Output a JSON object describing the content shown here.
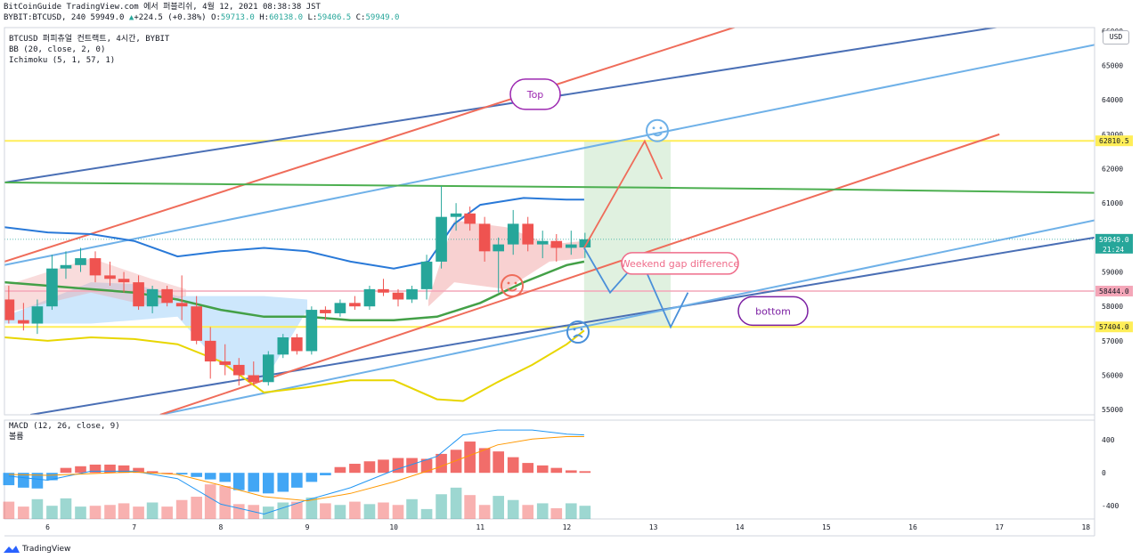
{
  "header": {
    "line1": "BitCoinGuide TradingView.com 에서 퍼블리쉬, 4월 12, 2021 08:38:38 JST",
    "symbol": "BYBIT:BTCUSD, 240",
    "last": "59949.0",
    "change": "+224.5 (+0.38%)",
    "o_label": "O:",
    "o_value": "59713.0",
    "h_label": "H:",
    "h_value": "60138.0",
    "l_label": "L:",
    "l_value": "59406.5",
    "c_label": "C:",
    "c_value": "59949.0"
  },
  "legend": {
    "title": "BTCUSD 퍼피츄얼 컨트랙트, 4시간, BYBIT",
    "bb": "BB (20, close, 2, 0)",
    "ichimoku": "Ichimoku (5, 1, 57, 1)",
    "macd": "MACD (12, 26, close, 9)",
    "volume": "볼륨"
  },
  "currency_button": "USD",
  "brand": "TradingView",
  "annotations": {
    "top": "Top",
    "bottom": "bottom",
    "gap": "Weekend gap difference"
  },
  "colors": {
    "up": "#26a69a",
    "down": "#ef5350",
    "bb_band": "#2979d8",
    "bb_basis": "#e8d600",
    "ichimoku_lead": "#4caf50",
    "level_yellow": "#ffee58",
    "level_pink": "#f4a6b8",
    "channel_dark": "#4a6fb5",
    "channel_light": "#6fb1e8",
    "channel_red": "#ef6c5a"
  },
  "chart_data": {
    "type": "candlestick",
    "price_axis": {
      "ticks": [
        55000,
        56000,
        57000,
        58000,
        59000,
        60000,
        61000,
        62000,
        63000,
        64000,
        65000,
        66000
      ],
      "ylim": [
        54850,
        66100
      ]
    },
    "x_axis": {
      "ticks": [
        "6",
        "7",
        "8",
        "9",
        "10",
        "11",
        "12",
        "13",
        "14",
        "15",
        "16",
        "17",
        "18"
      ]
    },
    "price_labels": [
      {
        "label": "62810.5",
        "value": 62810.5,
        "color": "#ffee58",
        "text_color": "#131722"
      },
      {
        "label": "59949.0",
        "sub": "21:24",
        "value": 59949.0,
        "color": "#26a69a",
        "text_color": "#ffffff"
      },
      {
        "label": "58444.0",
        "value": 58444.0,
        "color": "#f4a6b8",
        "text_color": "#131722"
      },
      {
        "label": "57404.0",
        "value": 57404.0,
        "color": "#ffee58",
        "text_color": "#131722"
      }
    ],
    "candles": [
      {
        "x": 5.55,
        "o": 58200,
        "h": 58600,
        "l": 57500,
        "c": 57600
      },
      {
        "x": 5.72,
        "o": 57600,
        "h": 58100,
        "l": 57300,
        "c": 57500
      },
      {
        "x": 5.88,
        "o": 57500,
        "h": 58200,
        "l": 57200,
        "c": 58000
      },
      {
        "x": 6.05,
        "o": 58000,
        "h": 59500,
        "l": 57900,
        "c": 59100
      },
      {
        "x": 6.21,
        "o": 59100,
        "h": 59600,
        "l": 58800,
        "c": 59200
      },
      {
        "x": 6.38,
        "o": 59200,
        "h": 59700,
        "l": 59000,
        "c": 59400
      },
      {
        "x": 6.55,
        "o": 59400,
        "h": 59600,
        "l": 58700,
        "c": 58900
      },
      {
        "x": 6.72,
        "o": 58900,
        "h": 59300,
        "l": 58600,
        "c": 58800
      },
      {
        "x": 6.88,
        "o": 58800,
        "h": 59000,
        "l": 58400,
        "c": 58700
      },
      {
        "x": 7.05,
        "o": 58700,
        "h": 58900,
        "l": 57900,
        "c": 58000
      },
      {
        "x": 7.21,
        "o": 58000,
        "h": 58600,
        "l": 57800,
        "c": 58500
      },
      {
        "x": 7.38,
        "o": 58500,
        "h": 58600,
        "l": 58000,
        "c": 58100
      },
      {
        "x": 7.55,
        "o": 58100,
        "h": 58900,
        "l": 57600,
        "c": 58000
      },
      {
        "x": 7.72,
        "o": 58000,
        "h": 58300,
        "l": 56900,
        "c": 57000
      },
      {
        "x": 7.88,
        "o": 57000,
        "h": 57400,
        "l": 55900,
        "c": 56400
      },
      {
        "x": 8.05,
        "o": 56400,
        "h": 56900,
        "l": 56000,
        "c": 56300
      },
      {
        "x": 8.21,
        "o": 56300,
        "h": 56500,
        "l": 55700,
        "c": 56000
      },
      {
        "x": 8.38,
        "o": 56000,
        "h": 56400,
        "l": 55700,
        "c": 55800
      },
      {
        "x": 8.55,
        "o": 55800,
        "h": 56700,
        "l": 55700,
        "c": 56600
      },
      {
        "x": 8.72,
        "o": 56600,
        "h": 57200,
        "l": 56500,
        "c": 57100
      },
      {
        "x": 8.88,
        "o": 57100,
        "h": 57200,
        "l": 56600,
        "c": 56700
      },
      {
        "x": 9.05,
        "o": 56700,
        "h": 58000,
        "l": 56600,
        "c": 57900
      },
      {
        "x": 9.21,
        "o": 57900,
        "h": 58000,
        "l": 57600,
        "c": 57800
      },
      {
        "x": 9.38,
        "o": 57800,
        "h": 58200,
        "l": 57700,
        "c": 58100
      },
      {
        "x": 9.55,
        "o": 58100,
        "h": 58300,
        "l": 57900,
        "c": 58000
      },
      {
        "x": 9.72,
        "o": 58000,
        "h": 58600,
        "l": 57900,
        "c": 58500
      },
      {
        "x": 9.88,
        "o": 58500,
        "h": 58800,
        "l": 58300,
        "c": 58400
      },
      {
        "x": 10.05,
        "o": 58400,
        "h": 58500,
        "l": 58000,
        "c": 58200
      },
      {
        "x": 10.21,
        "o": 58200,
        "h": 58600,
        "l": 58100,
        "c": 58500
      },
      {
        "x": 10.38,
        "o": 58500,
        "h": 59500,
        "l": 58200,
        "c": 59300
      },
      {
        "x": 10.55,
        "o": 59300,
        "h": 61500,
        "l": 59100,
        "c": 60600
      },
      {
        "x": 10.72,
        "o": 60600,
        "h": 61000,
        "l": 60200,
        "c": 60700
      },
      {
        "x": 10.88,
        "o": 60700,
        "h": 60900,
        "l": 60200,
        "c": 60400
      },
      {
        "x": 11.05,
        "o": 60400,
        "h": 60600,
        "l": 59300,
        "c": 59600
      },
      {
        "x": 11.21,
        "o": 59600,
        "h": 60000,
        "l": 58400,
        "c": 59800
      },
      {
        "x": 11.38,
        "o": 59800,
        "h": 60800,
        "l": 59500,
        "c": 60400
      },
      {
        "x": 11.55,
        "o": 60400,
        "h": 60600,
        "l": 59600,
        "c": 59800
      },
      {
        "x": 11.72,
        "o": 59800,
        "h": 60200,
        "l": 59400,
        "c": 59900
      },
      {
        "x": 11.88,
        "o": 59900,
        "h": 60100,
        "l": 59300,
        "c": 59700
      },
      {
        "x": 12.05,
        "o": 59700,
        "h": 60200,
        "l": 59500,
        "c": 59800
      },
      {
        "x": 12.21,
        "o": 59713,
        "h": 60138,
        "l": 59406.5,
        "c": 59949
      }
    ],
    "bb_upper": [
      [
        5.5,
        60300
      ],
      [
        6.0,
        60150
      ],
      [
        6.5,
        60100
      ],
      [
        7.0,
        59900
      ],
      [
        7.5,
        59450
      ],
      [
        8.0,
        59600
      ],
      [
        8.5,
        59700
      ],
      [
        9.0,
        59600
      ],
      [
        9.5,
        59300
      ],
      [
        10.0,
        59100
      ],
      [
        10.4,
        59300
      ],
      [
        10.7,
        60400
      ],
      [
        11.0,
        60950
      ],
      [
        11.5,
        61150
      ],
      [
        12.0,
        61100
      ],
      [
        12.2,
        61100
      ]
    ],
    "bb_lower": [
      [
        5.5,
        57100
      ],
      [
        6.0,
        57000
      ],
      [
        6.5,
        57100
      ],
      [
        7.0,
        57050
      ],
      [
        7.5,
        56900
      ],
      [
        8.0,
        56400
      ],
      [
        8.5,
        55500
      ],
      [
        9.0,
        55650
      ],
      [
        9.5,
        55850
      ],
      [
        10.0,
        55850
      ],
      [
        10.5,
        55300
      ],
      [
        10.8,
        55250
      ],
      [
        11.2,
        55800
      ],
      [
        11.6,
        56300
      ],
      [
        12.0,
        56900
      ],
      [
        12.2,
        57300
      ]
    ],
    "bb_basis_line": [
      [
        5.5,
        58700
      ],
      [
        6.0,
        58600
      ],
      [
        6.5,
        58500
      ],
      [
        7.0,
        58400
      ],
      [
        7.5,
        58200
      ],
      [
        8.0,
        57900
      ],
      [
        8.5,
        57700
      ],
      [
        9.0,
        57700
      ],
      [
        9.5,
        57600
      ],
      [
        10.0,
        57600
      ],
      [
        10.5,
        57700
      ],
      [
        11.0,
        58100
      ],
      [
        11.5,
        58700
      ],
      [
        12.0,
        59200
      ],
      [
        12.2,
        59300
      ]
    ],
    "ichimoku_lead": [
      [
        5.5,
        61600
      ],
      [
        8.0,
        61550
      ],
      [
        10.5,
        61500
      ],
      [
        13.0,
        61450
      ],
      [
        15.0,
        61400
      ],
      [
        18.1,
        61300
      ]
    ],
    "levels": [
      62810.5,
      58444.0,
      57404.0
    ],
    "channels": [
      {
        "color": "#4a6fb5",
        "from": [
          5.5,
          61600
        ],
        "to": [
          17.7,
          66400
        ]
      },
      {
        "color": "#4a6fb5",
        "from": [
          5.8,
          54850
        ],
        "to": [
          18.1,
          60000
        ]
      },
      {
        "color": "#6fb1e8",
        "from": [
          5.5,
          59200
        ],
        "to": [
          18.1,
          65600
        ]
      },
      {
        "color": "#6fb1e8",
        "from": [
          7.3,
          54850
        ],
        "to": [
          18.1,
          60500
        ]
      },
      {
        "color": "#ef6c5a",
        "from": [
          5.5,
          59300
        ],
        "to": [
          14.3,
          66400
        ]
      },
      {
        "color": "#ef6c5a",
        "from": [
          7.3,
          54850
        ],
        "to": [
          17.0,
          63000
        ]
      }
    ],
    "gap_box": {
      "x0": 12.2,
      "x1": 13.2,
      "y0": 57400,
      "y1": 62810.5
    },
    "projection_red": [
      [
        12.2,
        59700
      ],
      [
        12.9,
        62800
      ],
      [
        13.1,
        61700
      ]
    ],
    "projection_blue": [
      [
        12.2,
        59700
      ],
      [
        12.5,
        58400
      ],
      [
        12.85,
        59400
      ],
      [
        13.2,
        57400
      ],
      [
        13.4,
        58400
      ]
    ],
    "macd": {
      "ticks": [
        400,
        0,
        -400
      ],
      "ylim": [
        -560,
        640
      ],
      "macd_line": [
        [
          5.55,
          -40
        ],
        [
          6.0,
          -90
        ],
        [
          6.5,
          20
        ],
        [
          7.0,
          20
        ],
        [
          7.5,
          -70
        ],
        [
          8.0,
          -380
        ],
        [
          8.5,
          -500
        ],
        [
          9.0,
          -330
        ],
        [
          9.5,
          -180
        ],
        [
          10.0,
          30
        ],
        [
          10.5,
          200
        ],
        [
          10.8,
          460
        ],
        [
          11.2,
          520
        ],
        [
          11.6,
          520
        ],
        [
          12.0,
          470
        ],
        [
          12.2,
          460
        ]
      ],
      "signal_line": [
        [
          5.55,
          -20
        ],
        [
          6.0,
          -30
        ],
        [
          6.5,
          -10
        ],
        [
          7.0,
          10
        ],
        [
          7.5,
          -20
        ],
        [
          8.0,
          -150
        ],
        [
          8.5,
          -290
        ],
        [
          9.0,
          -340
        ],
        [
          9.5,
          -250
        ],
        [
          10.0,
          -110
        ],
        [
          10.5,
          60
        ],
        [
          10.8,
          180
        ],
        [
          11.2,
          340
        ],
        [
          11.6,
          410
        ],
        [
          12.0,
          440
        ],
        [
          12.2,
          440
        ]
      ],
      "histogram": [
        -150,
        -180,
        -190,
        -90,
        60,
        80,
        100,
        100,
        90,
        60,
        20,
        0,
        -20,
        -50,
        -80,
        -110,
        -210,
        -230,
        -250,
        -230,
        -180,
        -110,
        -30,
        70,
        110,
        140,
        160,
        180,
        180,
        170,
        230,
        280,
        380,
        300,
        260,
        190,
        120,
        90,
        60,
        30,
        20
      ],
      "volume": [
        210,
        150,
        240,
        160,
        250,
        150,
        160,
        170,
        190,
        150,
        200,
        150,
        230,
        270,
        420,
        400,
        180,
        170,
        150,
        200,
        210,
        260,
        190,
        170,
        210,
        180,
        200,
        170,
        240,
        120,
        300,
        380,
        290,
        170,
        280,
        230,
        170,
        190,
        130,
        190,
        160
      ]
    }
  }
}
